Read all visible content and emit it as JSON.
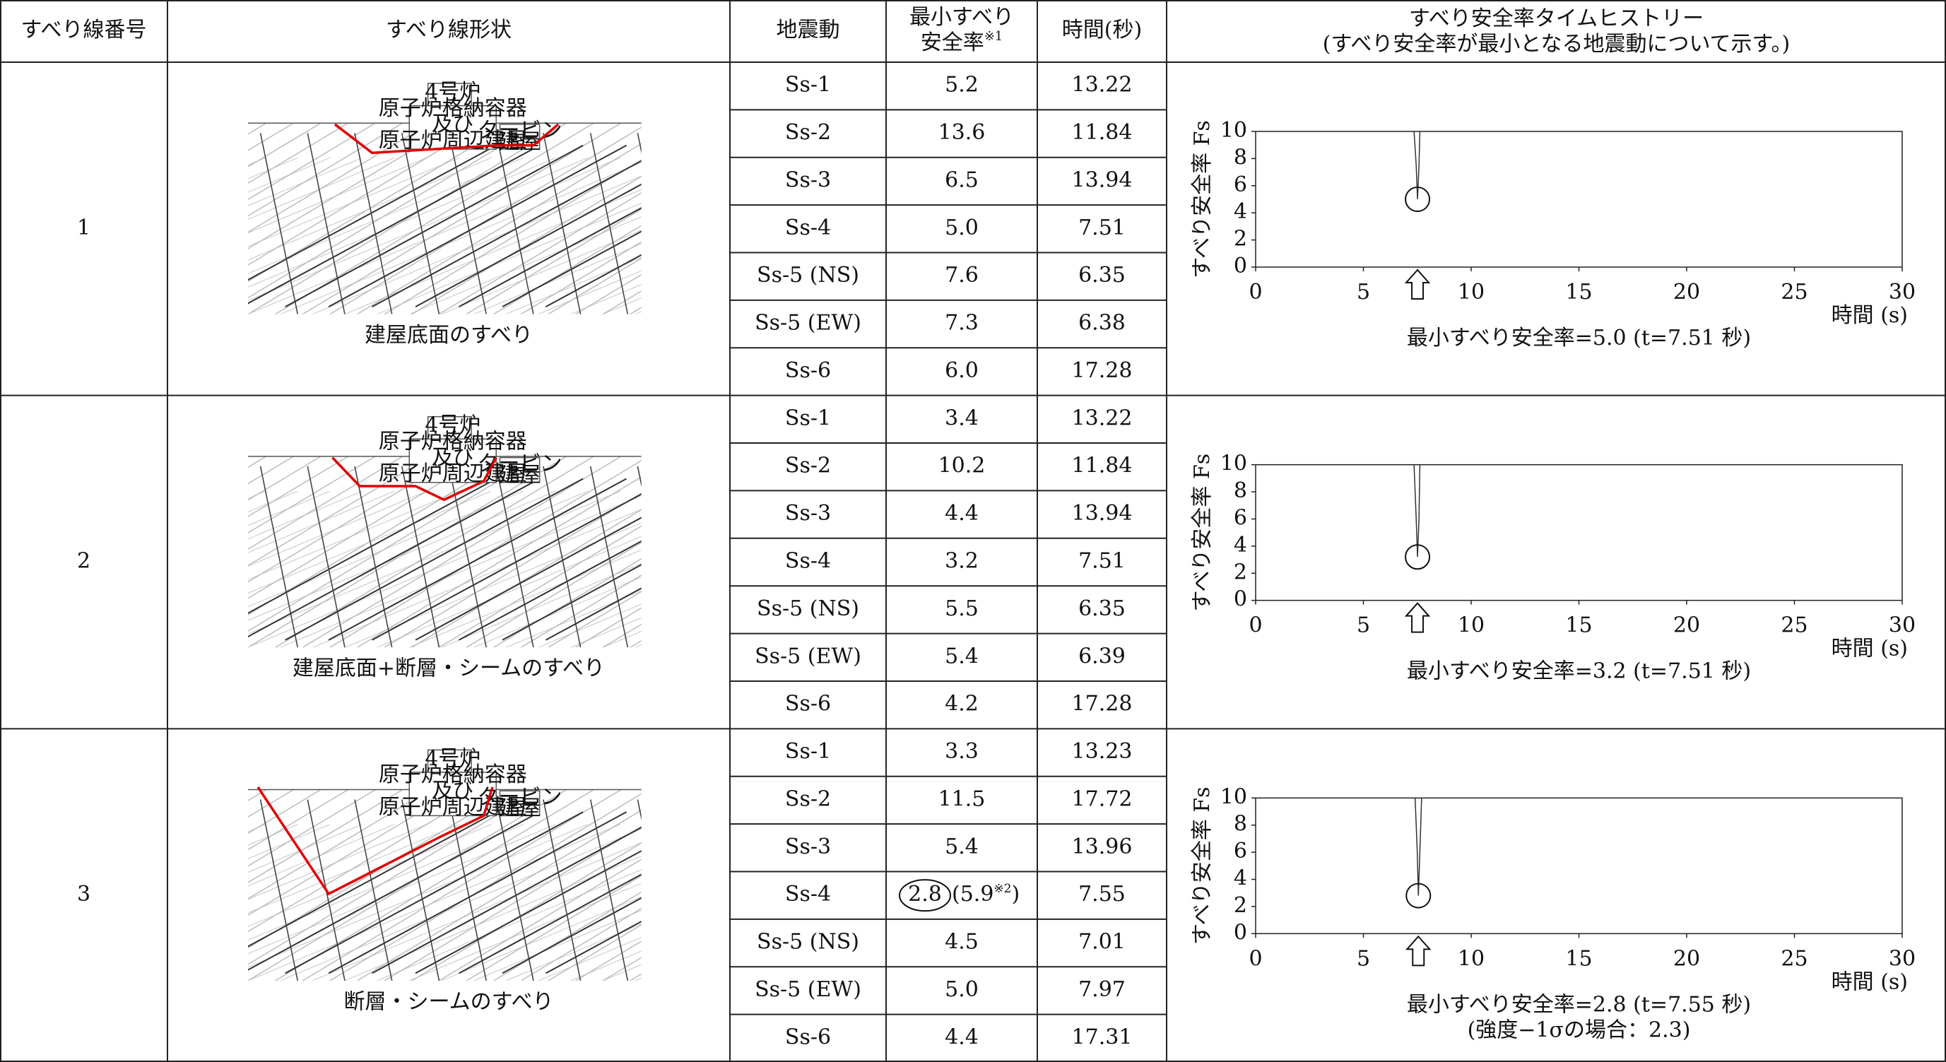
{
  "header": {
    "no": "すべり線番号",
    "shape": "すべり線形状",
    "motion": "地震動",
    "fs": [
      "最小すべり",
      "安全率"
    ],
    "fs_mark": "※1",
    "time": "時間(秒)",
    "history": "すべり安全率タイムヒストリー",
    "history_note": "(すべり安全率が最小となる地震動について示す。)"
  },
  "groups": [
    {
      "no": "1",
      "diagram": {
        "building": [
          "4号炉",
          "原子炉格納容器",
          "及び",
          "原子炉周辺建屋"
        ],
        "turbine": [
          "タービン",
          "建屋"
        ]
      },
      "caption": "建屋底面のすべり",
      "rows": [
        {
          "motion": "Ss-1",
          "fs": "5.2",
          "time": "13.22"
        },
        {
          "motion": "Ss-2",
          "fs": "13.6",
          "time": "11.84"
        },
        {
          "motion": "Ss-3",
          "fs": "6.5",
          "time": "13.94"
        },
        {
          "motion": "Ss-4",
          "fs": "5.0",
          "time": "7.51"
        },
        {
          "motion": "Ss-5 (NS)",
          "fs": "7.6",
          "time": "6.35"
        },
        {
          "motion": "Ss-5 (EW)",
          "fs": "7.3",
          "time": "6.38"
        },
        {
          "motion": "Ss-6",
          "fs": "6.0",
          "time": "17.28"
        }
      ],
      "chart": {
        "type": "line",
        "ylabel": "すべり安全率 Fs",
        "xlabel": "時間 (s)",
        "xlim": [
          0,
          30
        ],
        "ylim": [
          0,
          10
        ],
        "xticks": [
          0,
          5,
          10,
          15,
          20,
          25,
          30
        ],
        "yticks": [
          0,
          2,
          4,
          6,
          8,
          10
        ],
        "series": [
          {
            "x": [
              7.35,
              7.45,
              7.51,
              7.58,
              7.62
            ],
            "y": [
              10,
              7.5,
              5.0,
              7.5,
              10
            ]
          }
        ],
        "min_point": {
          "x": 7.51,
          "y": 5.0
        },
        "caption": [
          "最小すべり安全率=5.0 (t=7.51 秒)"
        ]
      }
    },
    {
      "no": "2",
      "diagram": {
        "building": [
          "4号炉",
          "原子炉格納容器",
          "及び",
          "原子炉周辺建屋"
        ],
        "turbine": [
          "タービン",
          "建屋"
        ]
      },
      "caption": "建屋底面+断層・シームのすべり",
      "rows": [
        {
          "motion": "Ss-1",
          "fs": "3.4",
          "time": "13.22"
        },
        {
          "motion": "Ss-2",
          "fs": "10.2",
          "time": "11.84"
        },
        {
          "motion": "Ss-3",
          "fs": "4.4",
          "time": "13.94"
        },
        {
          "motion": "Ss-4",
          "fs": "3.2",
          "time": "7.51"
        },
        {
          "motion": "Ss-5 (NS)",
          "fs": "5.5",
          "time": "6.35"
        },
        {
          "motion": "Ss-5 (EW)",
          "fs": "5.4",
          "time": "6.39"
        },
        {
          "motion": "Ss-6",
          "fs": "4.2",
          "time": "17.28"
        }
      ],
      "chart": {
        "type": "line",
        "ylabel": "すべり安全率 Fs",
        "xlabel": "時間 (s)",
        "xlim": [
          0,
          30
        ],
        "ylim": [
          0,
          10
        ],
        "xticks": [
          0,
          5,
          10,
          15,
          20,
          25,
          30
        ],
        "yticks": [
          0,
          2,
          4,
          6,
          8,
          10
        ],
        "series": [
          {
            "x": [
              7.35,
              7.45,
              7.51,
              7.58,
              7.62
            ],
            "y": [
              10,
              6,
              3.2,
              6,
              10
            ]
          }
        ],
        "min_point": {
          "x": 7.51,
          "y": 3.2
        },
        "caption": [
          "最小すべり安全率=3.2 (t=7.51 秒)"
        ]
      }
    },
    {
      "no": "3",
      "diagram": {
        "building": [
          "4号炉",
          "原子炉格納容器",
          "及び",
          "原子炉周辺建屋"
        ],
        "turbine": [
          "タービン",
          "建屋"
        ]
      },
      "caption": "断層・シームのすべり",
      "rows": [
        {
          "motion": "Ss-1",
          "fs": "3.3",
          "time": "13.23"
        },
        {
          "motion": "Ss-2",
          "fs": "11.5",
          "time": "17.72"
        },
        {
          "motion": "Ss-3",
          "fs": "5.4",
          "time": "13.96"
        },
        {
          "motion": "Ss-4",
          "fs": "2.8",
          "fs_note": [
            "(5.9",
            "※2",
            ")"
          ],
          "time": "7.55"
        },
        {
          "motion": "Ss-5 (NS)",
          "fs": "4.5",
          "time": "7.01"
        },
        {
          "motion": "Ss-5 (EW)",
          "fs": "5.0",
          "time": "7.97"
        },
        {
          "motion": "Ss-6",
          "fs": "4.4",
          "time": "17.31"
        }
      ],
      "chart": {
        "type": "line",
        "ylabel": "すべり安全率 Fs",
        "xlabel": "時間 (s)",
        "xlim": [
          0,
          30
        ],
        "ylim": [
          0,
          10
        ],
        "xticks": [
          0,
          5,
          10,
          15,
          20,
          25,
          30
        ],
        "yticks": [
          0,
          2,
          4,
          6,
          8,
          10
        ],
        "series": [
          {
            "x": [
              7.4,
              7.5,
              7.55,
              7.62,
              7.7
            ],
            "y": [
              10,
              6,
              2.8,
              6,
              10
            ]
          }
        ],
        "min_point": {
          "x": 7.55,
          "y": 2.8
        },
        "caption": [
          "最小すべり安全率=2.8 (t=7.55 秒)",
          "(強度−1σの場合：2.3)"
        ]
      }
    }
  ]
}
